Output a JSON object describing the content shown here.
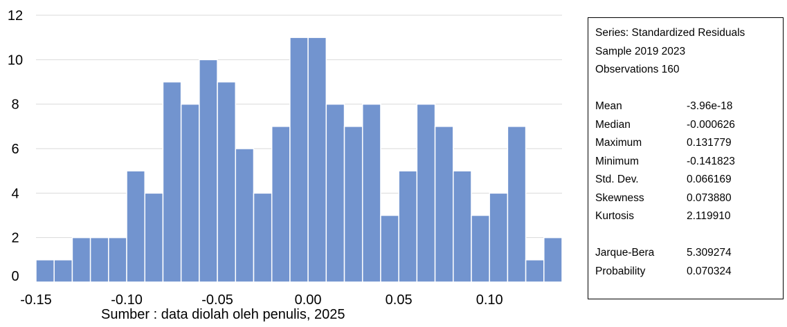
{
  "chart_data": {
    "type": "bar",
    "title": "",
    "xlabel": "",
    "ylabel": "",
    "x_tick_labels": [
      "-0.15",
      "-0.10",
      "-0.05",
      "0.00",
      "0.05",
      "0.10"
    ],
    "x_ticks": [
      -0.15,
      -0.1,
      -0.05,
      0.0,
      0.05,
      0.1
    ],
    "y_tick_labels": [
      "0",
      "2",
      "4",
      "6",
      "8",
      "10",
      "12"
    ],
    "ylim": [
      0,
      12
    ],
    "xlim": [
      -0.15,
      0.14
    ],
    "bin_width": 0.01,
    "bins": [
      {
        "x": -0.145,
        "value": 1
      },
      {
        "x": -0.135,
        "value": 1
      },
      {
        "x": -0.125,
        "value": 2
      },
      {
        "x": -0.115,
        "value": 2
      },
      {
        "x": -0.105,
        "value": 2
      },
      {
        "x": -0.095,
        "value": 5
      },
      {
        "x": -0.085,
        "value": 4
      },
      {
        "x": -0.075,
        "value": 9
      },
      {
        "x": -0.065,
        "value": 8
      },
      {
        "x": -0.055,
        "value": 10
      },
      {
        "x": -0.045,
        "value": 9
      },
      {
        "x": -0.035,
        "value": 6
      },
      {
        "x": -0.025,
        "value": 4
      },
      {
        "x": -0.015,
        "value": 7
      },
      {
        "x": -0.005,
        "value": 11
      },
      {
        "x": 0.005,
        "value": 11
      },
      {
        "x": 0.015,
        "value": 8
      },
      {
        "x": 0.025,
        "value": 7
      },
      {
        "x": 0.035,
        "value": 8
      },
      {
        "x": 0.045,
        "value": 3
      },
      {
        "x": 0.055,
        "value": 5
      },
      {
        "x": 0.065,
        "value": 8
      },
      {
        "x": 0.075,
        "value": 7
      },
      {
        "x": 0.085,
        "value": 5
      },
      {
        "x": 0.095,
        "value": 3
      },
      {
        "x": 0.105,
        "value": 4
      },
      {
        "x": 0.115,
        "value": 7
      },
      {
        "x": 0.125,
        "value": 1
      },
      {
        "x": 0.135,
        "value": 2
      }
    ],
    "grid": true,
    "color": "#7294cf"
  },
  "stats": {
    "series": "Series: Standardized Residuals",
    "sample": "Sample 2019 2023",
    "observations": "Observations 160",
    "rows": [
      {
        "label": "Mean",
        "value": "-3.96e-18"
      },
      {
        "label": "Median",
        "value": "-0.000626"
      },
      {
        "label": "Maximum",
        "value": "0.131779"
      },
      {
        "label": "Minimum",
        "value": "-0.141823"
      },
      {
        "label": "Std. Dev.",
        "value": "0.066169"
      },
      {
        "label": "Skewness",
        "value": "0.073880"
      },
      {
        "label": "Kurtosis",
        "value": "2.119910"
      }
    ],
    "jb_label": "Jarque-Bera",
    "jb_value": "5.309274",
    "prob_label": "Probability",
    "prob_value": "0.070324"
  },
  "source_note": "Sumber : data diolah oleh penulis, 2025"
}
